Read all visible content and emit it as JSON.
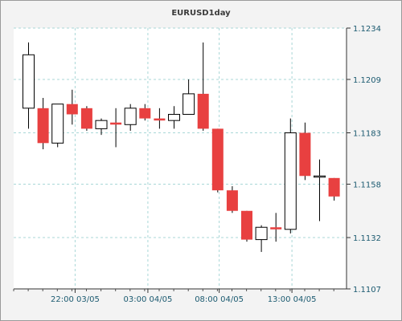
{
  "chart_data": {
    "type": "candlestick",
    "title": "EURUSD1day",
    "xlabel": "",
    "ylabel": "",
    "ylim": [
      1.1107,
      1.1234
    ],
    "yticks": [
      1.1107,
      1.1132,
      1.1158,
      1.1183,
      1.1209,
      1.1234
    ],
    "ytick_labels": [
      "1.1107",
      "1.1132",
      "1.1158",
      "1.1183",
      "1.1209",
      "1.1234"
    ],
    "xtick_labels": [
      "22:00 03/05",
      "03:00 04/05",
      "08:00 04/05",
      "13:00 04/05"
    ],
    "xtick_candle_index": [
      3.2,
      8.2,
      13.1,
      18.1
    ],
    "grid": true,
    "colors": {
      "bullish": "#ffffff",
      "bearish": "#e84040",
      "wick": "#000000",
      "grid": "#a9d7d7",
      "plot_bg": "#ffffff"
    },
    "candles": [
      {
        "open": 1.1195,
        "high": 1.1227,
        "low": 1.1185,
        "close": 1.1221
      },
      {
        "open": 1.1195,
        "high": 1.12,
        "low": 1.1175,
        "close": 1.1178
      },
      {
        "open": 1.1178,
        "high": 1.1197,
        "low": 1.1176,
        "close": 1.1197
      },
      {
        "open": 1.1197,
        "high": 1.1204,
        "low": 1.1187,
        "close": 1.1192
      },
      {
        "open": 1.1195,
        "high": 1.1196,
        "low": 1.1184,
        "close": 1.1185
      },
      {
        "open": 1.1185,
        "high": 1.119,
        "low": 1.1182,
        "close": 1.1189
      },
      {
        "open": 1.1188,
        "high": 1.1195,
        "low": 1.1176,
        "close": 1.1187
      },
      {
        "open": 1.1187,
        "high": 1.1197,
        "low": 1.1184,
        "close": 1.1195
      },
      {
        "open": 1.1195,
        "high": 1.1197,
        "low": 1.1189,
        "close": 1.119
      },
      {
        "open": 1.119,
        "high": 1.1195,
        "low": 1.1185,
        "close": 1.1189
      },
      {
        "open": 1.1189,
        "high": 1.1196,
        "low": 1.1185,
        "close": 1.1192
      },
      {
        "open": 1.1192,
        "high": 1.1209,
        "low": 1.1192,
        "close": 1.1202
      },
      {
        "open": 1.1202,
        "high": 1.1227,
        "low": 1.1184,
        "close": 1.1185
      },
      {
        "open": 1.1185,
        "high": 1.1185,
        "low": 1.1154,
        "close": 1.1155
      },
      {
        "open": 1.1155,
        "high": 1.1157,
        "low": 1.1144,
        "close": 1.1145
      },
      {
        "open": 1.1145,
        "high": 1.1145,
        "low": 1.113,
        "close": 1.1131
      },
      {
        "open": 1.1131,
        "high": 1.1138,
        "low": 1.1125,
        "close": 1.1137
      },
      {
        "open": 1.1137,
        "high": 1.1144,
        "low": 1.113,
        "close": 1.1136
      },
      {
        "open": 1.1136,
        "high": 1.119,
        "low": 1.1134,
        "close": 1.1183
      },
      {
        "open": 1.1183,
        "high": 1.1188,
        "low": 1.116,
        "close": 1.1162
      },
      {
        "open": 1.1162,
        "high": 1.117,
        "low": 1.114,
        "close": 1.1162
      },
      {
        "open": 1.1161,
        "high": 1.1161,
        "low": 1.115,
        "close": 1.1152
      }
    ]
  }
}
